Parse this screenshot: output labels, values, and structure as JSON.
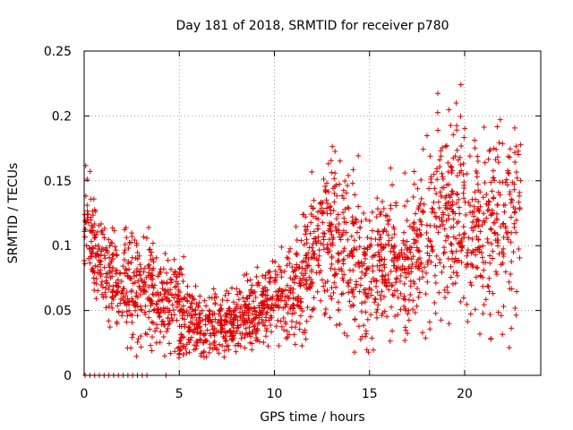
{
  "chart_data": {
    "type": "scatter",
    "title": "Day 181 of 2018, SRMTID for receiver p780",
    "xlabel": "GPS time / hours",
    "ylabel": "SRMTID / TECUs",
    "xlim": [
      0,
      24
    ],
    "ylim": [
      0,
      0.25
    ],
    "x_ticks": [
      0,
      5,
      10,
      15,
      20
    ],
    "x_tick_labels": [
      "0",
      "5",
      "10",
      "15",
      "20"
    ],
    "y_ticks": [
      0,
      0.05,
      0.1,
      0.15,
      0.2,
      0.25
    ],
    "y_tick_labels": [
      "0",
      "0.05",
      "0.1",
      "0.15",
      "0.2",
      "0.25"
    ],
    "grid": true,
    "marker": "plus",
    "color": "#dd0000",
    "series": [
      {
        "name": "p780",
        "zero_x": [
          0.05,
          0.3,
          0.55,
          0.8,
          1.05,
          1.3,
          1.55,
          1.8,
          2.05,
          2.3,
          2.55,
          2.8,
          3.05,
          3.3,
          4.3
        ],
        "trend_x": [
          0,
          0.5,
          1,
          2,
          3,
          4,
          5,
          6,
          7,
          8,
          9,
          10,
          11,
          11.5,
          12,
          13,
          14,
          15,
          16,
          17,
          18,
          19,
          20,
          21,
          22,
          23
        ],
        "trend_y": [
          0.12,
          0.1,
          0.085,
          0.07,
          0.065,
          0.06,
          0.05,
          0.038,
          0.038,
          0.042,
          0.05,
          0.058,
          0.06,
          0.075,
          0.095,
          0.11,
          0.095,
          0.08,
          0.09,
          0.085,
          0.105,
          0.125,
          0.125,
          0.11,
          0.115,
          0.135
        ],
        "spread": [
          0.02,
          0.018,
          0.02,
          0.02,
          0.02,
          0.02,
          0.018,
          0.012,
          0.012,
          0.013,
          0.013,
          0.015,
          0.02,
          0.025,
          0.025,
          0.03,
          0.03,
          0.028,
          0.028,
          0.028,
          0.03,
          0.04,
          0.035,
          0.035,
          0.035,
          0.04
        ],
        "n_points": 2200
      }
    ]
  }
}
